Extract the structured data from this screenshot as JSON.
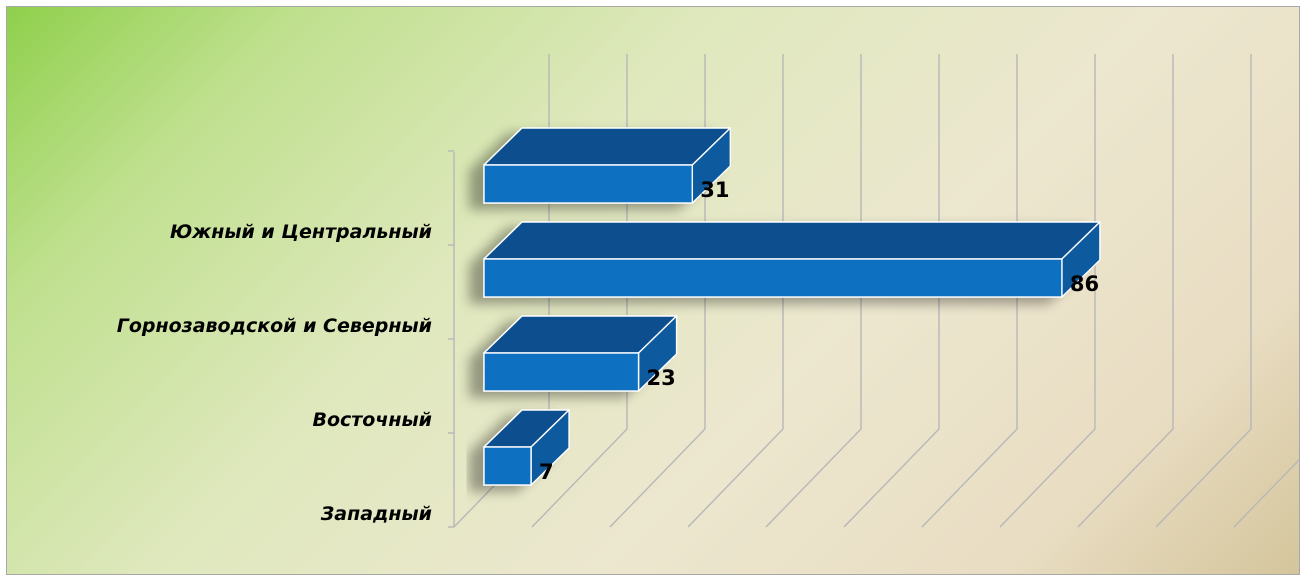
{
  "chart_data": {
    "type": "bar",
    "orientation": "horizontal",
    "style": "3d",
    "title": "",
    "xlabel": "",
    "ylabel": "",
    "categories": [
      "Западный",
      "Восточный",
      "Горнозаводской и Северный",
      "Южный и Центральный"
    ],
    "values": [
      7,
      23,
      86,
      31
    ],
    "data_labels": [
      "7",
      "23",
      "86",
      "31"
    ],
    "xlim": [
      0,
      100
    ],
    "grid": true,
    "legend": "none"
  },
  "colors": {
    "bar_front": "#0f70c0",
    "bar_top": "#0a4f8e",
    "bar_side": "#0b5a9f",
    "bar_edge": "#ffffff",
    "grid": "#b7b7b7",
    "frame_border": "#a8a8a8"
  }
}
